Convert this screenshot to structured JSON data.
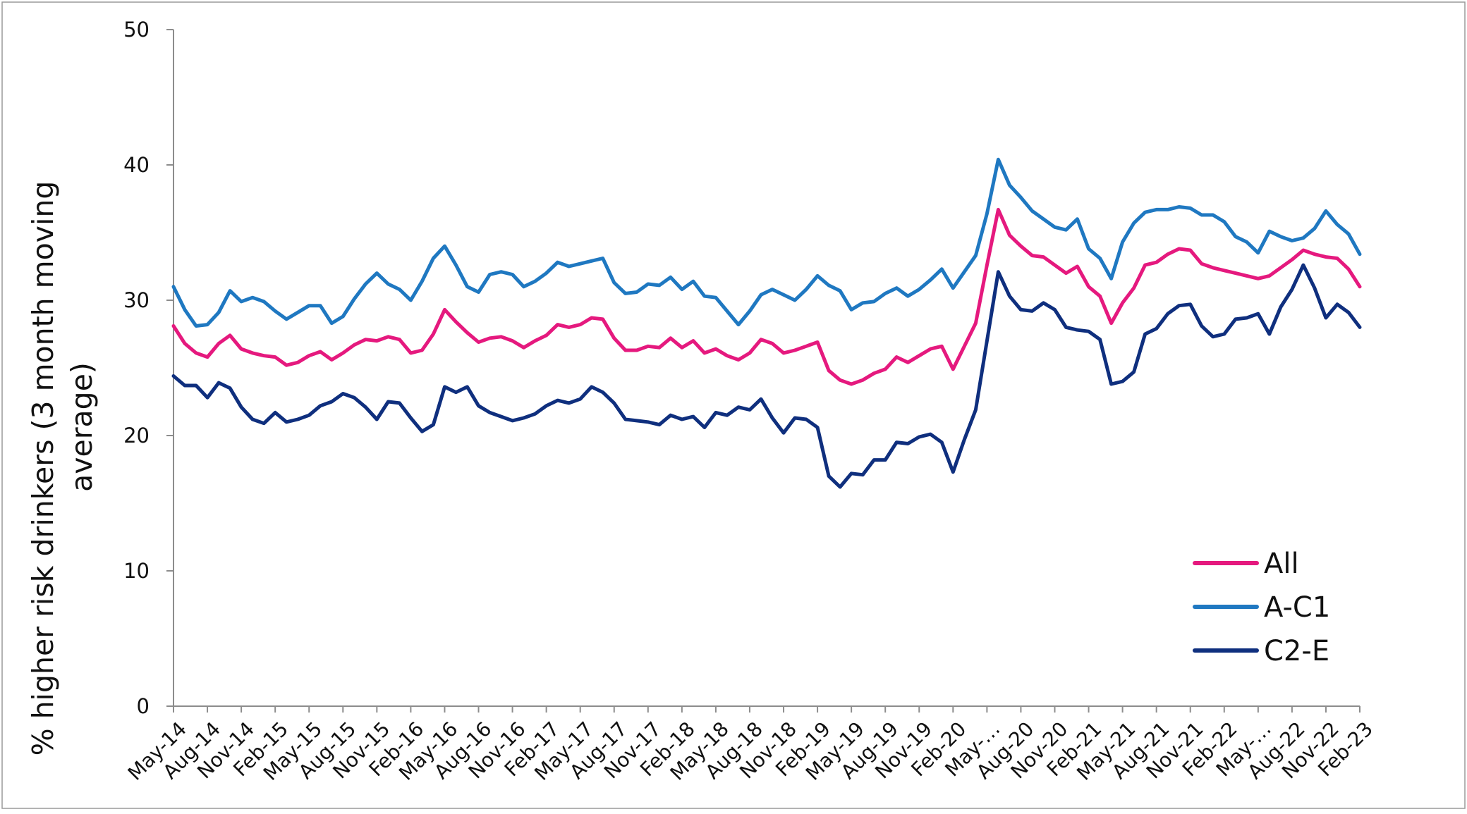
{
  "chart_data": {
    "type": "line",
    "title": "",
    "xlabel": "",
    "ylabel": "% higher risk drinkers (3 month moving average)",
    "ylabel_lines": [
      "% higher risk drinkers (3 month moving",
      "average)"
    ],
    "ylim": [
      0,
      50
    ],
    "yticks": [
      "0",
      "10",
      "20",
      "30",
      "40",
      "50"
    ],
    "xtick_labels": [
      "May-14",
      "Aug-14",
      "Nov-14",
      "Feb-15",
      "May-15",
      "Aug-15",
      "Nov-15",
      "Feb-16",
      "May-16",
      "Aug-16",
      "Nov-16",
      "Feb-17",
      "May-17",
      "Aug-17",
      "Nov-17",
      "Feb-18",
      "May-18",
      "Aug-18",
      "Nov-18",
      "Feb-19",
      "May-19",
      "Aug-19",
      "Nov-19",
      "Feb-20",
      "May-…",
      "Aug-20",
      "Nov-20",
      "Feb-21",
      "May-21",
      "Aug-21",
      "Nov-21",
      "Feb-22",
      "May-…",
      "Aug-22",
      "Nov-22",
      "Feb-23"
    ],
    "grid": false,
    "legend_position": "bottom-right",
    "series": [
      {
        "name": "All",
        "color": "#e5197e",
        "values": [
          28.1,
          26.8,
          26.1,
          25.8,
          26.8,
          27.4,
          26.4,
          26.1,
          25.9,
          25.8,
          25.2,
          25.4,
          25.9,
          26.2,
          25.6,
          26.1,
          26.7,
          27.1,
          27.0,
          27.3,
          27.1,
          26.1,
          26.3,
          27.5,
          29.3,
          28.4,
          27.6,
          26.9,
          27.2,
          27.3,
          27.0,
          26.5,
          27.0,
          27.4,
          28.2,
          28.0,
          28.2,
          28.7,
          28.6,
          27.2,
          26.3,
          26.3,
          26.6,
          26.5,
          27.2,
          26.5,
          27.0,
          26.1,
          26.4,
          25.9,
          25.6,
          26.1,
          27.1,
          26.8,
          26.1,
          26.3,
          26.6,
          26.9,
          24.8,
          24.1,
          23.8,
          24.1,
          24.6,
          24.9,
          25.8,
          25.4,
          25.9,
          26.4,
          26.6,
          24.9,
          26.6,
          28.3,
          32.6,
          36.7,
          34.8,
          34.0,
          33.3,
          33.2,
          32.6,
          32.0,
          32.5,
          31.0,
          30.3,
          28.3,
          29.8,
          30.9,
          32.6,
          32.8,
          33.4,
          33.8,
          33.7,
          32.7,
          32.4,
          32.2,
          32.0,
          31.8,
          31.6,
          31.8,
          32.4,
          33.0,
          33.7,
          33.4,
          33.2,
          33.1,
          32.3,
          31.0
        ]
      },
      {
        "name": "A-C1",
        "color": "#1f78c1",
        "values": [
          31.0,
          29.3,
          28.1,
          28.2,
          29.1,
          30.7,
          29.9,
          30.2,
          29.9,
          29.2,
          28.6,
          29.1,
          29.6,
          29.6,
          28.3,
          28.8,
          30.1,
          31.2,
          32.0,
          31.2,
          30.8,
          30.0,
          31.4,
          33.1,
          34.0,
          32.6,
          31.0,
          30.6,
          31.9,
          32.1,
          31.9,
          31.0,
          31.4,
          32.0,
          32.8,
          32.5,
          32.7,
          32.9,
          33.1,
          31.3,
          30.5,
          30.6,
          31.2,
          31.1,
          31.7,
          30.8,
          31.4,
          30.3,
          30.2,
          29.2,
          28.2,
          29.2,
          30.4,
          30.8,
          30.4,
          30.0,
          30.8,
          31.8,
          31.1,
          30.7,
          29.3,
          29.8,
          29.9,
          30.5,
          30.9,
          30.3,
          30.8,
          31.5,
          32.3,
          30.9,
          32.1,
          33.3,
          36.4,
          40.4,
          38.5,
          37.6,
          36.6,
          36.0,
          35.4,
          35.2,
          36.0,
          33.8,
          33.1,
          31.6,
          34.3,
          35.7,
          36.5,
          36.7,
          36.7,
          36.9,
          36.8,
          36.3,
          36.3,
          35.8,
          34.7,
          34.3,
          33.5,
          35.1,
          34.7,
          34.4,
          34.6,
          35.3,
          36.6,
          35.6,
          34.9,
          33.4
        ]
      },
      {
        "name": "C2-E",
        "color": "#0f2f7e",
        "values": [
          24.4,
          23.7,
          23.7,
          22.8,
          23.9,
          23.5,
          22.1,
          21.2,
          20.9,
          21.7,
          21.0,
          21.2,
          21.5,
          22.2,
          22.5,
          23.1,
          22.8,
          22.1,
          21.2,
          22.5,
          22.4,
          21.3,
          20.3,
          20.8,
          23.6,
          23.2,
          23.6,
          22.2,
          21.7,
          21.4,
          21.1,
          21.3,
          21.6,
          22.2,
          22.6,
          22.4,
          22.7,
          23.6,
          23.2,
          22.4,
          21.2,
          21.1,
          21.0,
          20.8,
          21.5,
          21.2,
          21.4,
          20.6,
          21.7,
          21.5,
          22.1,
          21.9,
          22.7,
          21.3,
          20.2,
          21.3,
          21.2,
          20.6,
          17.0,
          16.2,
          17.2,
          17.1,
          18.2,
          18.2,
          19.5,
          19.4,
          19.9,
          20.1,
          19.5,
          17.3,
          19.7,
          21.9,
          27.0,
          32.1,
          30.3,
          29.3,
          29.2,
          29.8,
          29.3,
          28.0,
          27.8,
          27.7,
          27.1,
          23.8,
          24.0,
          24.7,
          27.5,
          27.9,
          29.0,
          29.6,
          29.7,
          28.1,
          27.3,
          27.5,
          28.6,
          28.7,
          29.0,
          27.5,
          29.5,
          30.8,
          32.6,
          30.9,
          28.7,
          29.7,
          29.1,
          28.0
        ]
      }
    ]
  }
}
